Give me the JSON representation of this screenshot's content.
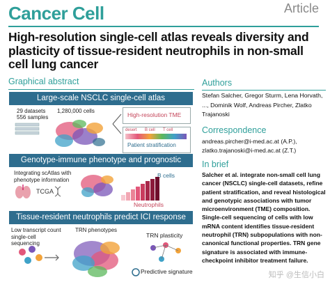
{
  "header": {
    "journal": "Cancer Cell",
    "article_type": "Article"
  },
  "title": "High-resolution single-cell atlas reveals diversity and plasticity of tissue-resident neutrophils in non-small cell lung cancer",
  "graphical_abstract": {
    "heading": "Graphical abstract",
    "panel1": {
      "band": "Large-scale NSCLC single-cell atlas",
      "datasets": "29 datasets",
      "samples": "556 samples",
      "cells": "1,280,000 cells",
      "box1": "High-resolution TME",
      "box_cols": [
        "desert",
        "B cell",
        "T cell"
      ],
      "box2": "Patient stratification"
    },
    "panel2": {
      "band": "Genotype-immune phenotype and prognostic associations",
      "integrating": "Integrating scAtlas with phenotype information",
      "tcga": "TCGA",
      "bcells": "B cells",
      "neutrophils": "Neutrophils"
    },
    "panel3": {
      "band": "Tissue-resident neutrophils predict ICI response",
      "low": "Low transcript count single-cell sequencing",
      "trn": "TRN phenotypes",
      "plasticity": "TRN plasticity",
      "predictive": "Predictive signature"
    }
  },
  "authors": {
    "heading": "Authors",
    "text": "Stefan Salcher, Gregor Sturm, Lena Horvath, ..., Dominik Wolf, Andreas Pircher, Zlatko Trajanoski"
  },
  "correspondence": {
    "heading": "Correspondence",
    "line1": "andreas.pircher@i-med.ac.at (A.P.),",
    "line2": "zlatko.trajanoski@i-med.ac.at (Z.T.)"
  },
  "brief": {
    "heading": "In brief",
    "text": "Salcher et al. integrate non-small cell lung cancer (NSCLC) single-cell datasets, refine patient stratification, and reveal histological and genotypic associations with tumor microenvironment (TME) composition. Single-cell sequencing of cells with low mRNA content identifies tissue-resident neutrophil (TRN) subpopulations with non-canonical functional properties. TRN gene signature is associated with immune-checkpoint inhibitor treatment failure."
  },
  "watermark": "知乎 @生信小白"
}
